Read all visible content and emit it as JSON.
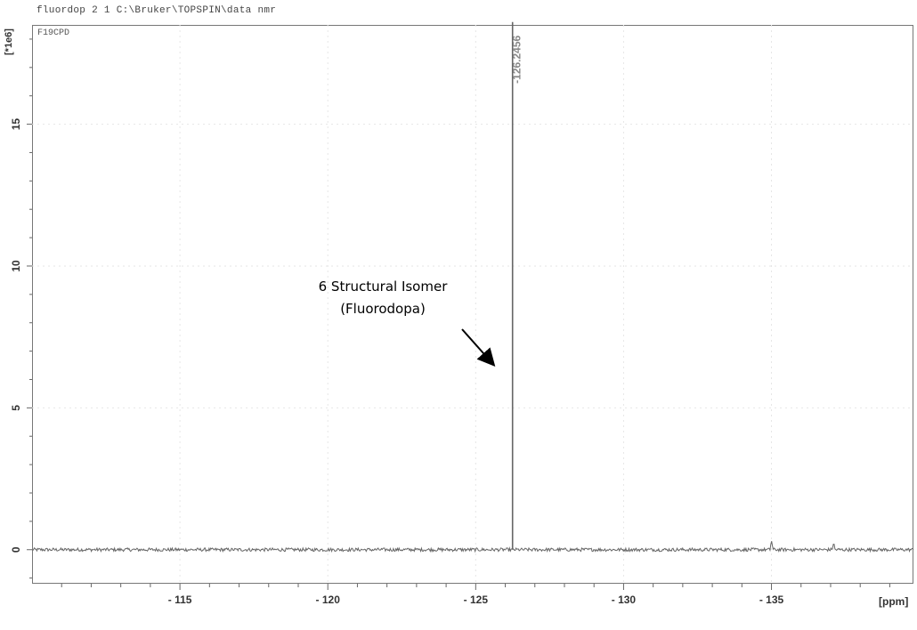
{
  "header": {
    "title": "fluordop  2  1  C:\\Bruker\\TOPSPIN\\data  nmr",
    "experiment": "F19CPD"
  },
  "annotation": {
    "line1": "6 Structural Isomer",
    "line2": "(Fluorodopa)"
  },
  "chart_data": {
    "type": "line",
    "title": "",
    "xlabel": "[ppm]",
    "ylabel": "[*1e6]",
    "x_reversed": true,
    "xlim": [
      -110.0,
      -139.8
    ],
    "ylim": [
      -1.2,
      18.5
    ],
    "x_ticks": [
      -115,
      -120,
      -125,
      -130,
      -135
    ],
    "x_tick_labels": [
      "- 115",
      "- 120",
      "- 125",
      "- 130",
      "- 135"
    ],
    "y_ticks": [
      0,
      5,
      10,
      15
    ],
    "y_tick_labels": [
      "0",
      "5",
      "10",
      "15"
    ],
    "grid": true,
    "series": [
      {
        "color": "#666666",
        "baseline": 0.0,
        "peaks": [
          {
            "ppm": -126.2456,
            "intensity": 18.6,
            "label": "-126.2456"
          },
          {
            "ppm": -135.0,
            "intensity": 0.35
          },
          {
            "ppm": -137.1,
            "intensity": 0.25
          }
        ]
      }
    ]
  }
}
